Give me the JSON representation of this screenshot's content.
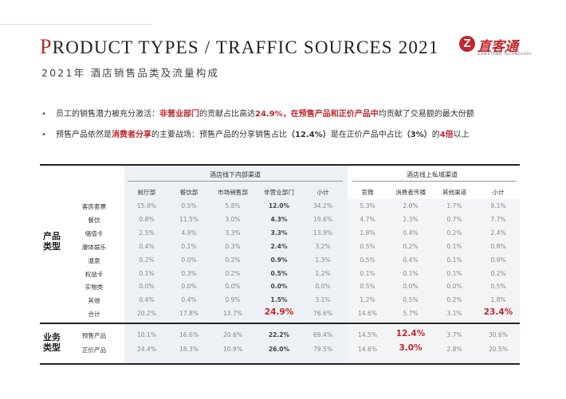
{
  "header": {
    "title_first": "P",
    "title_rest": "RODUCT TYPES / TRAFFIC SOURCES 2021",
    "subtitle": "2021年 酒店销售品类及流量构成",
    "logo_name": "直客通",
    "logo_tag": "ZHIKETONG TECHNOLOGY"
  },
  "bullets": [
    {
      "p1": "员工的销售潜力被充分激活：",
      "h1": "非营业部门",
      "p2": "的贡献占比高达",
      "h2": "24.9%，在预售产品和正价产品中",
      "p3": "均贡献了交易额的最大份额"
    },
    {
      "p1": "预售产品依然是",
      "h1": "消费者分享",
      "p2": "的主要战场：预售产品的分享销售占比",
      "b1": "（12.4%）",
      "p3": "是在正价产品中占比",
      "b2": "（3%）",
      "p4": "的",
      "h2": "4倍",
      "p5": "以上"
    }
  ],
  "table": {
    "group1": "酒店线下内部渠道",
    "group2": "酒店线上私域渠道",
    "columns": [
      "前厅部",
      "餐饮部",
      "市场销售部",
      "非营业部门",
      "小计",
      "官微",
      "消费者传播",
      "其他渠道",
      "小计"
    ],
    "side1": "产品类型",
    "side2": "业务类型",
    "rows1": [
      {
        "label": "客房套票",
        "values": [
          "15.9%",
          "0.5%",
          "5.8%",
          "12.0%",
          "34.2%",
          "5.3%",
          "2.0%",
          "1.7%",
          "9.1%"
        ]
      },
      {
        "label": "餐饮",
        "values": [
          "0.8%",
          "11.5%",
          "3.0%",
          "4.3%",
          "19.6%",
          "4.7%",
          "2.3%",
          "0.7%",
          "7.7%"
        ]
      },
      {
        "label": "储值卡",
        "values": [
          "2.5%",
          "4.9%",
          "3.3%",
          "3.3%",
          "13.9%",
          "1.8%",
          "0.4%",
          "0.2%",
          "2.4%"
        ]
      },
      {
        "label": "康体娱乐",
        "values": [
          "0.4%",
          "0.1%",
          "0.3%",
          "2.4%",
          "3.2%",
          "0.5%",
          "0.2%",
          "0.1%",
          "0.8%"
        ]
      },
      {
        "label": "温泉",
        "values": [
          "0.2%",
          "0.0%",
          "0.2%",
          "0.9%",
          "1.3%",
          "0.5%",
          "0.4%",
          "0.1%",
          "0.9%"
        ]
      },
      {
        "label": "权益卡",
        "values": [
          "0.1%",
          "0.3%",
          "0.2%",
          "0.5%",
          "1.2%",
          "0.1%",
          "0.1%",
          "0.1%",
          "0.2%"
        ]
      },
      {
        "label": "实物类",
        "values": [
          "0.0%",
          "0.0%",
          "0.0%",
          "0.0%",
          "0.0%",
          "0.5%",
          "0.0%",
          "0.0%",
          "0.5%"
        ]
      },
      {
        "label": "其他",
        "values": [
          "0.4%",
          "0.4%",
          "0.9%",
          "1.5%",
          "3.1%",
          "1.2%",
          "0.5%",
          "0.2%",
          "1.8%"
        ]
      },
      {
        "label": "合计",
        "values": [
          "20.2%",
          "17.8%",
          "13.7%",
          "24.9%",
          "76.6%",
          "14.6%",
          "5.7%",
          "3.1%",
          "23.4%"
        ]
      }
    ],
    "rows2": [
      {
        "label": "预售产品",
        "values": [
          "10.1%",
          "16.6%",
          "20.6%",
          "22.2%",
          "69.4%",
          "14.5%",
          "12.4%",
          "3.7%",
          "30.6%"
        ]
      },
      {
        "label": "正价产品",
        "values": [
          "24.4%",
          "18.3%",
          "10.9%",
          "26.0%",
          "79.5%",
          "14.6%",
          "3.0%",
          "2.8%",
          "20.5%"
        ]
      }
    ],
    "colors": {
      "accent": "#c0262e",
      "shade": "#edf0f4"
    }
  }
}
